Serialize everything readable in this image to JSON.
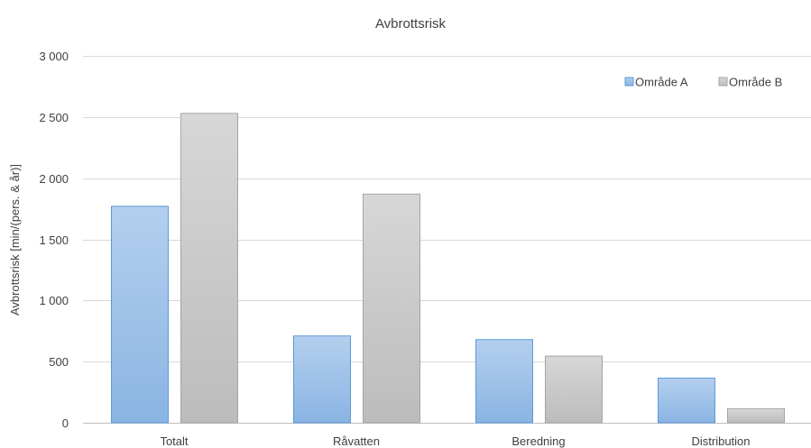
{
  "chart_data": {
    "type": "bar",
    "title": "Avbrottsrisk",
    "xlabel": "",
    "ylabel": "Avbrottsrisk [min/(pers. & år)]",
    "categories": [
      "Totalt",
      "Råvatten",
      "Beredning",
      "Distribution"
    ],
    "series": [
      {
        "name": "Område A",
        "values": [
          1770,
          710,
          680,
          365
        ],
        "color": "#5b9bd5"
      },
      {
        "name": "Område B",
        "values": [
          2530,
          1870,
          545,
          115
        ],
        "color": "#a5a5a5"
      }
    ],
    "ylim": [
      0,
      3000
    ],
    "yticks": [
      0,
      500,
      1000,
      1500,
      2000,
      2500,
      3000
    ],
    "ytick_labels": [
      "0",
      "500",
      "1 000",
      "1 500",
      "2 000",
      "2 500",
      "3 000"
    ],
    "grid": true,
    "legend_position": "top-right"
  }
}
